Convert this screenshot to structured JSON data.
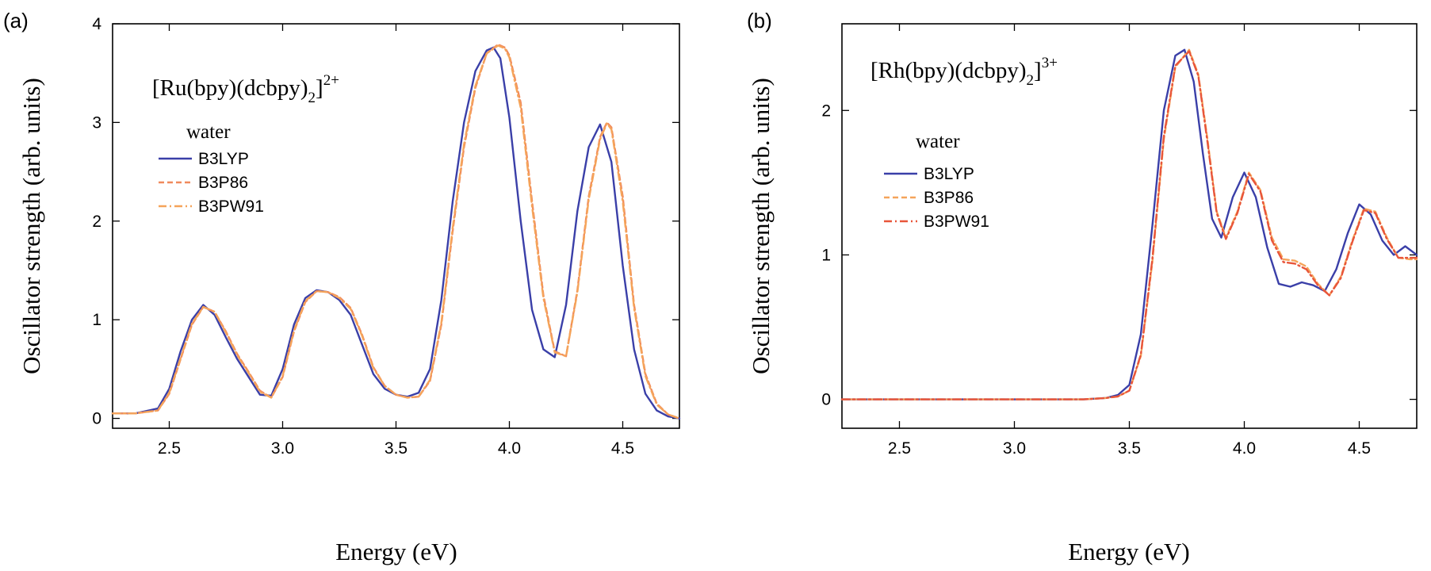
{
  "chart_data": [
    {
      "type": "line",
      "panel_label": "(a)",
      "title": "",
      "compound": {
        "main": "[Ru(bpy)(dcbpy)",
        "sub": "2",
        "close": "]",
        "sup": "2+"
      },
      "solvent": "water",
      "xlabel": "Energy (eV)",
      "ylabel": "Oscillator strength (arb. units)",
      "xlim": [
        2.25,
        4.75
      ],
      "ylim": [
        -0.1,
        4.0
      ],
      "xticks": [
        2.5,
        3.0,
        3.5,
        4.0,
        4.5
      ],
      "xtick_labels": [
        "2.5",
        "3.0",
        "3.5",
        "4.0",
        "4.5"
      ],
      "yticks": [
        0,
        1,
        2,
        3,
        4
      ],
      "ytick_labels": [
        "0",
        "1",
        "2",
        "3",
        "4"
      ],
      "legend_position": "upper-left",
      "series": [
        {
          "name": "B3LYP",
          "color": "#3a3fa8",
          "style": "solid",
          "x": [
            2.25,
            2.35,
            2.45,
            2.5,
            2.55,
            2.6,
            2.65,
            2.7,
            2.75,
            2.8,
            2.85,
            2.9,
            2.95,
            3.0,
            3.05,
            3.1,
            3.15,
            3.2,
            3.25,
            3.3,
            3.35,
            3.4,
            3.45,
            3.5,
            3.55,
            3.6,
            3.65,
            3.7,
            3.75,
            3.8,
            3.85,
            3.9,
            3.93,
            3.96,
            4.0,
            4.05,
            4.1,
            4.15,
            4.2,
            4.25,
            4.3,
            4.35,
            4.4,
            4.45,
            4.5,
            4.55,
            4.6,
            4.65,
            4.7,
            4.75
          ],
          "y": [
            0.05,
            0.05,
            0.1,
            0.3,
            0.68,
            1.0,
            1.15,
            1.05,
            0.82,
            0.6,
            0.42,
            0.24,
            0.23,
            0.5,
            0.95,
            1.22,
            1.3,
            1.28,
            1.2,
            1.05,
            0.75,
            0.45,
            0.3,
            0.24,
            0.22,
            0.26,
            0.5,
            1.2,
            2.2,
            3.0,
            3.52,
            3.73,
            3.76,
            3.65,
            3.05,
            2.0,
            1.1,
            0.7,
            0.62,
            1.15,
            2.1,
            2.75,
            2.98,
            2.6,
            1.55,
            0.7,
            0.25,
            0.08,
            0.02,
            0.0
          ]
        },
        {
          "name": "B3P86",
          "color": "#f08a5d",
          "style": "dashed",
          "x": [
            2.25,
            2.35,
            2.45,
            2.5,
            2.55,
            2.6,
            2.65,
            2.7,
            2.75,
            2.8,
            2.85,
            2.9,
            2.95,
            3.0,
            3.05,
            3.1,
            3.15,
            3.2,
            3.25,
            3.3,
            3.35,
            3.4,
            3.45,
            3.5,
            3.55,
            3.6,
            3.65,
            3.7,
            3.75,
            3.8,
            3.85,
            3.9,
            3.95,
            3.98,
            4.0,
            4.05,
            4.1,
            4.15,
            4.2,
            4.25,
            4.3,
            4.35,
            4.4,
            4.43,
            4.45,
            4.5,
            4.55,
            4.6,
            4.65,
            4.7,
            4.75
          ],
          "y": [
            0.05,
            0.05,
            0.08,
            0.25,
            0.6,
            0.95,
            1.13,
            1.08,
            0.88,
            0.65,
            0.47,
            0.28,
            0.21,
            0.42,
            0.88,
            1.18,
            1.29,
            1.28,
            1.23,
            1.12,
            0.85,
            0.52,
            0.33,
            0.24,
            0.21,
            0.22,
            0.38,
            0.95,
            1.9,
            2.75,
            3.35,
            3.7,
            3.79,
            3.76,
            3.68,
            3.2,
            2.2,
            1.25,
            0.68,
            0.63,
            1.3,
            2.25,
            2.85,
            3.0,
            2.95,
            2.25,
            1.15,
            0.45,
            0.15,
            0.04,
            0.0
          ]
        },
        {
          "name": "B3PW91",
          "color": "#f5a45a",
          "style": "dash-dot",
          "x": [
            2.25,
            2.35,
            2.45,
            2.5,
            2.55,
            2.6,
            2.65,
            2.7,
            2.75,
            2.8,
            2.85,
            2.9,
            2.95,
            3.0,
            3.05,
            3.1,
            3.15,
            3.2,
            3.25,
            3.3,
            3.35,
            3.4,
            3.45,
            3.5,
            3.55,
            3.6,
            3.65,
            3.7,
            3.75,
            3.8,
            3.85,
            3.9,
            3.95,
            3.98,
            4.0,
            4.05,
            4.1,
            4.15,
            4.2,
            4.25,
            4.3,
            4.35,
            4.4,
            4.43,
            4.45,
            4.5,
            4.55,
            4.6,
            4.65,
            4.7,
            4.75
          ],
          "y": [
            0.05,
            0.05,
            0.08,
            0.26,
            0.61,
            0.96,
            1.13,
            1.08,
            0.87,
            0.64,
            0.46,
            0.27,
            0.21,
            0.43,
            0.89,
            1.19,
            1.29,
            1.28,
            1.22,
            1.11,
            0.84,
            0.51,
            0.33,
            0.24,
            0.21,
            0.22,
            0.39,
            0.97,
            1.93,
            2.78,
            3.37,
            3.7,
            3.78,
            3.75,
            3.66,
            3.15,
            2.15,
            1.22,
            0.67,
            0.63,
            1.28,
            2.22,
            2.83,
            2.99,
            2.93,
            2.2,
            1.12,
            0.43,
            0.14,
            0.04,
            0.0
          ]
        }
      ]
    },
    {
      "type": "line",
      "panel_label": "(b)",
      "title": "",
      "compound": {
        "main": "[Rh(bpy)(dcbpy)",
        "sub": "2",
        "close": "]",
        "sup": "3+"
      },
      "solvent": "water",
      "xlabel": "Energy (eV)",
      "ylabel": "Oscillator strength (arb. units)",
      "xlim": [
        2.25,
        4.75
      ],
      "ylim": [
        -0.2,
        2.6
      ],
      "xticks": [
        2.5,
        3.0,
        3.5,
        4.0,
        4.5
      ],
      "xtick_labels": [
        "2.5",
        "3.0",
        "3.5",
        "4.0",
        "4.5"
      ],
      "yticks": [
        0,
        1,
        2
      ],
      "ytick_labels": [
        "0",
        "1",
        "2"
      ],
      "legend_position": "upper-left",
      "series": [
        {
          "name": "B3LYP",
          "color": "#3a3fa8",
          "style": "solid",
          "x": [
            2.25,
            3.3,
            3.4,
            3.45,
            3.5,
            3.55,
            3.6,
            3.65,
            3.7,
            3.74,
            3.78,
            3.82,
            3.86,
            3.9,
            3.95,
            4.0,
            4.05,
            4.1,
            4.15,
            4.2,
            4.25,
            4.3,
            4.35,
            4.4,
            4.45,
            4.5,
            4.55,
            4.6,
            4.65,
            4.7,
            4.75
          ],
          "y": [
            0.0,
            0.0,
            0.01,
            0.03,
            0.1,
            0.45,
            1.2,
            2.0,
            2.38,
            2.42,
            2.2,
            1.7,
            1.25,
            1.12,
            1.4,
            1.57,
            1.4,
            1.05,
            0.8,
            0.78,
            0.81,
            0.79,
            0.75,
            0.9,
            1.15,
            1.35,
            1.28,
            1.1,
            1.0,
            1.06,
            1.0
          ]
        },
        {
          "name": "B3P86",
          "color": "#f5a45a",
          "style": "dashed",
          "x": [
            2.25,
            3.3,
            3.4,
            3.45,
            3.5,
            3.55,
            3.6,
            3.65,
            3.7,
            3.76,
            3.8,
            3.84,
            3.88,
            3.92,
            3.97,
            4.02,
            4.07,
            4.12,
            4.17,
            4.22,
            4.27,
            4.32,
            4.37,
            4.42,
            4.47,
            4.52,
            4.57,
            4.62,
            4.67,
            4.72,
            4.75
          ],
          "y": [
            0.0,
            0.0,
            0.01,
            0.02,
            0.06,
            0.3,
            0.95,
            1.8,
            2.3,
            2.42,
            2.25,
            1.8,
            1.3,
            1.12,
            1.3,
            1.57,
            1.45,
            1.12,
            0.97,
            0.96,
            0.92,
            0.8,
            0.72,
            0.85,
            1.1,
            1.32,
            1.3,
            1.12,
            0.98,
            0.97,
            0.97
          ]
        },
        {
          "name": "B3PW91",
          "color": "#e8553a",
          "style": "dash-dot",
          "x": [
            2.25,
            3.3,
            3.4,
            3.45,
            3.5,
            3.55,
            3.6,
            3.65,
            3.7,
            3.76,
            3.8,
            3.84,
            3.88,
            3.92,
            3.97,
            4.02,
            4.07,
            4.12,
            4.17,
            4.22,
            4.27,
            4.32,
            4.37,
            4.42,
            4.47,
            4.52,
            4.57,
            4.62,
            4.67,
            4.72,
            4.75
          ],
          "y": [
            0.0,
            0.0,
            0.01,
            0.02,
            0.06,
            0.31,
            0.97,
            1.82,
            2.31,
            2.41,
            2.24,
            1.78,
            1.29,
            1.11,
            1.29,
            1.56,
            1.44,
            1.1,
            0.95,
            0.94,
            0.9,
            0.79,
            0.72,
            0.84,
            1.09,
            1.31,
            1.29,
            1.11,
            0.98,
            0.98,
            0.98
          ]
        }
      ]
    }
  ]
}
